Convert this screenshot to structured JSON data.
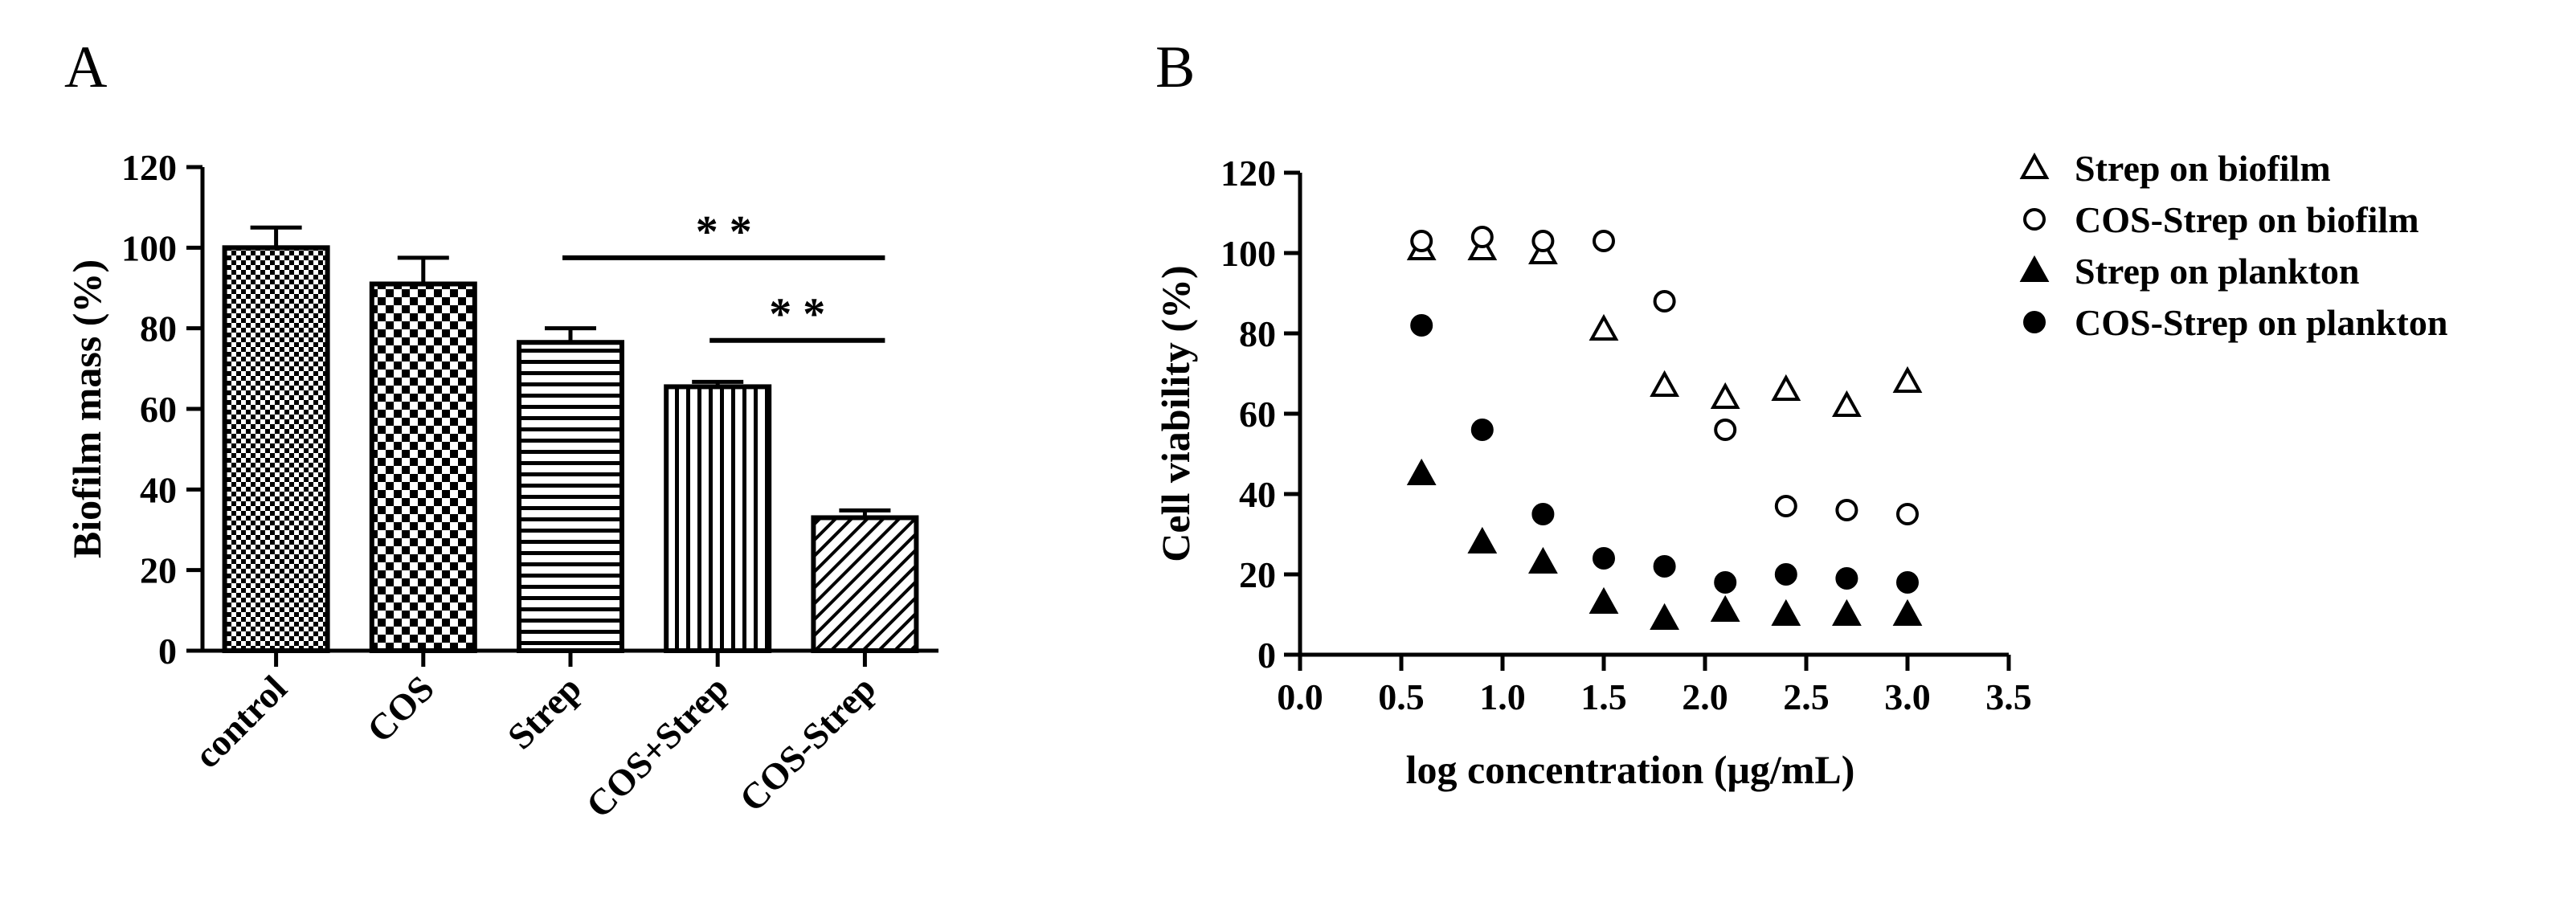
{
  "panels": {
    "a": {
      "letter": "A"
    },
    "b": {
      "letter": "B"
    }
  },
  "chart_data": [
    {
      "type": "bar",
      "panel": "A",
      "title": "",
      "xlabel": "",
      "ylabel": "Biofilm mass (%)",
      "ylim": [
        0,
        120
      ],
      "yticks": [
        0,
        20,
        40,
        60,
        80,
        100,
        120
      ],
      "categories": [
        "control",
        "COS",
        "Strep",
        "COS+Strep",
        "COS-Strep"
      ],
      "values": [
        100,
        91,
        76.5,
        65.5,
        33
      ],
      "errors": [
        5,
        6.5,
        3.5,
        1.2,
        1.8
      ],
      "patterns": [
        "fine-checker",
        "checker",
        "horizontal",
        "vertical",
        "diagonal"
      ],
      "significance": [
        {
          "from": "Strep",
          "to": "COS-Strep",
          "label": "* *"
        },
        {
          "from": "COS+Strep",
          "to": "COS-Strep",
          "label": "* *"
        }
      ]
    },
    {
      "type": "scatter",
      "panel": "B",
      "title": "",
      "xlabel": "log concentration (μg/mL)",
      "ylabel": "Cell viability (%)",
      "xlim": [
        0,
        3.5
      ],
      "ylim": [
        0,
        120
      ],
      "xticks": [
        "0.0",
        "0.5",
        "1.0",
        "1.5",
        "2.0",
        "2.5",
        "3.0",
        "3.5"
      ],
      "yticks": [
        0,
        20,
        40,
        60,
        80,
        100,
        120
      ],
      "x": [
        0.6,
        0.9,
        1.2,
        1.5,
        1.8,
        2.1,
        2.4,
        2.7,
        3.0
      ],
      "legend_position": "right",
      "series": [
        {
          "name": "Strep on biofilm",
          "marker": "triangle-open",
          "values": [
            101,
            101,
            100,
            81,
            67,
            64,
            66,
            62,
            68
          ]
        },
        {
          "name": "COS-Strep on biofilm",
          "marker": "circle-open",
          "values": [
            103,
            104,
            103,
            103,
            88,
            56,
            37,
            36,
            35
          ]
        },
        {
          "name": "Strep on plankton",
          "marker": "triangle-filled",
          "values": [
            45,
            28,
            23,
            13,
            9,
            11,
            10,
            10,
            10
          ]
        },
        {
          "name": "COS-Strep on plankton",
          "marker": "circle-filled",
          "values": [
            82,
            56,
            35,
            24,
            22,
            18,
            20,
            19,
            18
          ]
        }
      ]
    }
  ]
}
